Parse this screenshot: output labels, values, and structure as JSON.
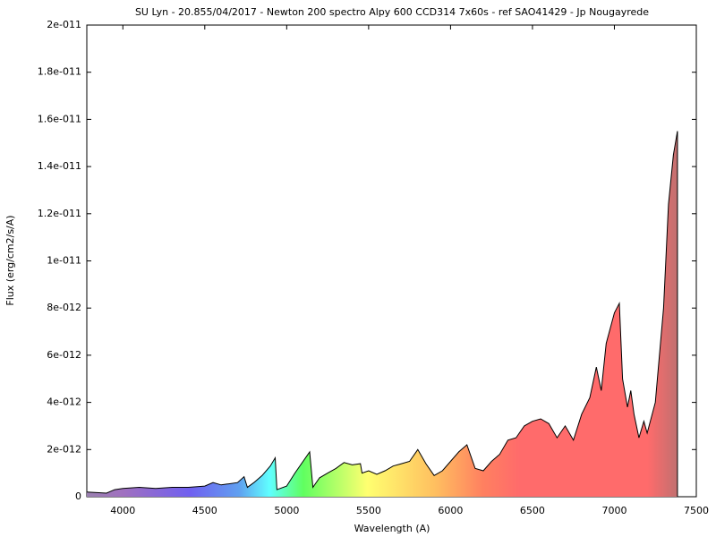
{
  "chart_data": {
    "type": "area",
    "title": "SU Lyn - 20.855/04/2017 - Newton 200 spectro Alpy 600 CCD314 7x60s - ref SAO41429 - Jp Nougayrede",
    "x_label": "Wavelength (A)",
    "y_label": "Flux (erg/cm2/s/A)",
    "color": "#000000",
    "x": [
      3780,
      3900,
      3950,
      4000,
      4100,
      4200,
      4300,
      4400,
      4500,
      4550,
      4600,
      4700,
      4740,
      4760,
      4800,
      4850,
      4900,
      4930,
      4940,
      5000,
      5050,
      5100,
      5140,
      5160,
      5200,
      5250,
      5300,
      5350,
      5400,
      5450,
      5460,
      5500,
      5550,
      5600,
      5650,
      5700,
      5750,
      5800,
      5850,
      5900,
      5950,
      6000,
      6050,
      6100,
      6150,
      6200,
      6250,
      6300,
      6350,
      6400,
      6450,
      6500,
      6550,
      6600,
      6650,
      6700,
      6750,
      6800,
      6850,
      6890,
      6920,
      6950,
      7000,
      7030,
      7050,
      7080,
      7100,
      7120,
      7150,
      7180,
      7200,
      7250,
      7300,
      7330,
      7360,
      7385
    ],
    "values": [
      2e-13,
      1.5e-13,
      3e-13,
      3.5e-13,
      4e-13,
      3.5e-13,
      4e-13,
      4e-13,
      4.5e-13,
      6e-13,
      5e-13,
      6e-13,
      8.5e-13,
      4e-13,
      6e-13,
      9e-13,
      1.3e-12,
      1.65e-12,
      3e-13,
      4.5e-13,
      1e-12,
      1.5e-12,
      1.9e-12,
      4e-13,
      8e-13,
      1e-12,
      1.2e-12,
      1.45e-12,
      1.35e-12,
      1.4e-12,
      1e-12,
      1.1e-12,
      9.5e-13,
      1.1e-12,
      1.3e-12,
      1.4e-12,
      1.5e-12,
      2e-12,
      1.4e-12,
      9e-13,
      1.1e-12,
      1.5e-12,
      1.9e-12,
      2.2e-12,
      1.2e-12,
      1.1e-12,
      1.5e-12,
      1.8e-12,
      2.4e-12,
      2.5e-12,
      3e-12,
      3.2e-12,
      3.3e-12,
      3.1e-12,
      2.5e-12,
      3e-12,
      2.4e-12,
      3.5e-12,
      4.2e-12,
      5.5e-12,
      4.5e-12,
      6.5e-12,
      7.8e-12,
      8.2e-12,
      5e-12,
      3.8e-12,
      4.5e-12,
      3.5e-12,
      2.5e-12,
      3.2e-12,
      2.7e-12,
      4e-12,
      8e-12,
      1.24e-11,
      1.45e-11,
      1.55e-11
    ],
    "xlim": [
      3780,
      7500
    ],
    "xticks": [
      4000,
      4500,
      5000,
      5500,
      6000,
      6500,
      7000,
      7500
    ],
    "ylim": [
      0,
      2e-11
    ],
    "yticks": [
      0,
      {
        "value": 2e-12,
        "label": "2e-012"
      },
      {
        "value": 4e-12,
        "label": "4e-012"
      },
      {
        "value": 6e-12,
        "label": "6e-012"
      },
      {
        "value": 8e-12,
        "label": "8e-012"
      },
      {
        "value": 1e-11,
        "label": "1e-011"
      },
      {
        "value": 1.2e-11,
        "label": "1.2e-011"
      },
      {
        "value": 1.4e-11,
        "label": "1.4e-011"
      },
      {
        "value": 1.6e-11,
        "label": "1.6e-011"
      },
      {
        "value": 1.8e-11,
        "label": "1.8e-011"
      },
      {
        "value": 2e-11,
        "label": "2e-011"
      }
    ]
  }
}
